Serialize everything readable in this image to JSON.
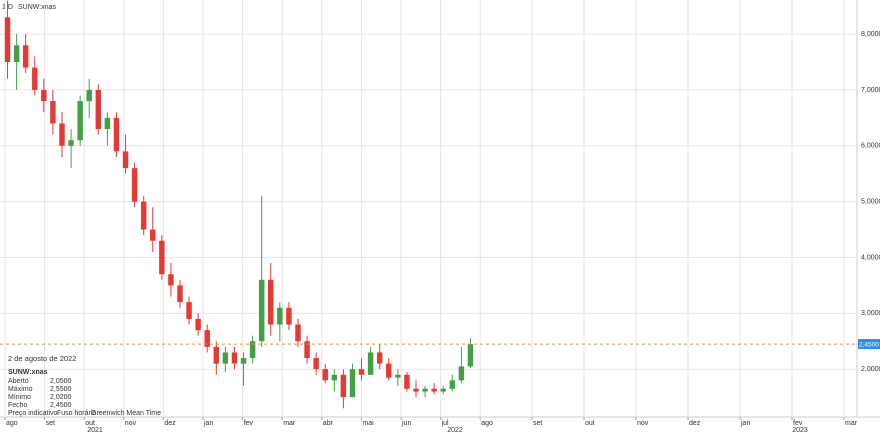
{
  "chart_data": {
    "type": "candlestick",
    "interval": "1 D",
    "symbol": "SUNW:xnas",
    "candles": [
      [
        8.3,
        8.6,
        7.2,
        7.5
      ],
      [
        7.5,
        8.0,
        7.0,
        7.8
      ],
      [
        7.8,
        8.0,
        7.3,
        7.4
      ],
      [
        7.4,
        7.6,
        6.9,
        7.0
      ],
      [
        7.0,
        7.2,
        6.6,
        6.8
      ],
      [
        6.8,
        7.0,
        6.2,
        6.4
      ],
      [
        6.4,
        6.6,
        5.8,
        6.0
      ],
      [
        6.0,
        6.3,
        5.6,
        6.1
      ],
      [
        6.1,
        6.9,
        6.0,
        6.8
      ],
      [
        6.8,
        7.2,
        6.5,
        7.0
      ],
      [
        7.0,
        7.1,
        6.2,
        6.3
      ],
      [
        6.3,
        6.6,
        6.0,
        6.5
      ],
      [
        6.5,
        6.6,
        5.8,
        5.9
      ],
      [
        5.9,
        6.2,
        5.5,
        5.6
      ],
      [
        5.6,
        5.7,
        4.9,
        5.0
      ],
      [
        5.0,
        5.1,
        4.4,
        4.5
      ],
      [
        4.5,
        4.9,
        4.1,
        4.3
      ],
      [
        4.3,
        4.4,
        3.6,
        3.7
      ],
      [
        3.7,
        3.9,
        3.3,
        3.5
      ],
      [
        3.5,
        3.6,
        3.1,
        3.2
      ],
      [
        3.2,
        3.3,
        2.8,
        2.9
      ],
      [
        2.9,
        3.0,
        2.6,
        2.7
      ],
      [
        2.7,
        2.8,
        2.3,
        2.4
      ],
      [
        2.4,
        2.5,
        1.9,
        2.1
      ],
      [
        2.1,
        2.4,
        1.95,
        2.3
      ],
      [
        2.3,
        2.4,
        2.0,
        2.1
      ],
      [
        2.1,
        2.3,
        1.7,
        2.2
      ],
      [
        2.2,
        2.6,
        2.1,
        2.5
      ],
      [
        2.5,
        5.1,
        2.4,
        3.6
      ],
      [
        3.6,
        3.9,
        2.6,
        2.8
      ],
      [
        2.8,
        3.2,
        2.5,
        3.1
      ],
      [
        3.1,
        3.2,
        2.7,
        2.8
      ],
      [
        2.8,
        2.9,
        2.4,
        2.5
      ],
      [
        2.5,
        2.6,
        2.1,
        2.2
      ],
      [
        2.2,
        2.3,
        1.9,
        2.0
      ],
      [
        2.0,
        2.1,
        1.75,
        1.8
      ],
      [
        1.8,
        2.0,
        1.6,
        1.9
      ],
      [
        1.9,
        2.0,
        1.3,
        1.5
      ],
      [
        1.5,
        2.1,
        1.5,
        2.0
      ],
      [
        2.0,
        2.2,
        1.8,
        1.9
      ],
      [
        1.9,
        2.4,
        1.9,
        2.3
      ],
      [
        2.3,
        2.45,
        2.0,
        2.1
      ],
      [
        2.1,
        2.2,
        1.8,
        1.85
      ],
      [
        1.85,
        2.0,
        1.7,
        1.9
      ],
      [
        1.9,
        1.95,
        1.6,
        1.65
      ],
      [
        1.65,
        1.8,
        1.5,
        1.6
      ],
      [
        1.6,
        1.7,
        1.5,
        1.65
      ],
      [
        1.65,
        1.75,
        1.55,
        1.6
      ],
      [
        1.6,
        1.7,
        1.55,
        1.65
      ],
      [
        1.65,
        1.9,
        1.6,
        1.8
      ],
      [
        1.8,
        2.4,
        1.75,
        2.05
      ],
      [
        2.05,
        2.55,
        2.02,
        2.45
      ]
    ],
    "up_color": "#43a047",
    "down_color": "#e53935",
    "categories": [
      "ago",
      "set",
      "out",
      "nov",
      "dez",
      "jan",
      "fev",
      "mar",
      "abr",
      "mai",
      "jun",
      "jul",
      "ago",
      "set",
      "out",
      "nov",
      "dez",
      "jan",
      "fev",
      "mar"
    ],
    "years": [
      "2021",
      "2022",
      "2023"
    ],
    "ylim": [
      1.18,
      8.61
    ],
    "yticks": [
      {
        "value": 2,
        "label": "2,0000"
      },
      {
        "value": 3,
        "label": "3,0000"
      },
      {
        "value": 4,
        "label": "4,0000"
      },
      {
        "value": 5,
        "label": "5,0000"
      },
      {
        "value": 6,
        "label": "6,0000"
      },
      {
        "value": 7,
        "label": "7,0000"
      },
      {
        "value": 8,
        "label": "8,0000"
      }
    ],
    "last_price": {
      "value": 2.45,
      "label": "2,4500",
      "color": "#f08a4b"
    },
    "info": {
      "date": "2 de agosto de 2022",
      "symbol": "SUNW:xnas",
      "rows": [
        [
          "Aberto",
          "2,0500"
        ],
        [
          "Máximo",
          "2,5500"
        ],
        [
          "Mínimo",
          "2,0200"
        ],
        [
          "Fecho",
          "2,4500"
        ]
      ],
      "footer": [
        "Preço indicativo",
        "Fuso horário",
        "Greenwich Mean Time"
      ]
    }
  }
}
